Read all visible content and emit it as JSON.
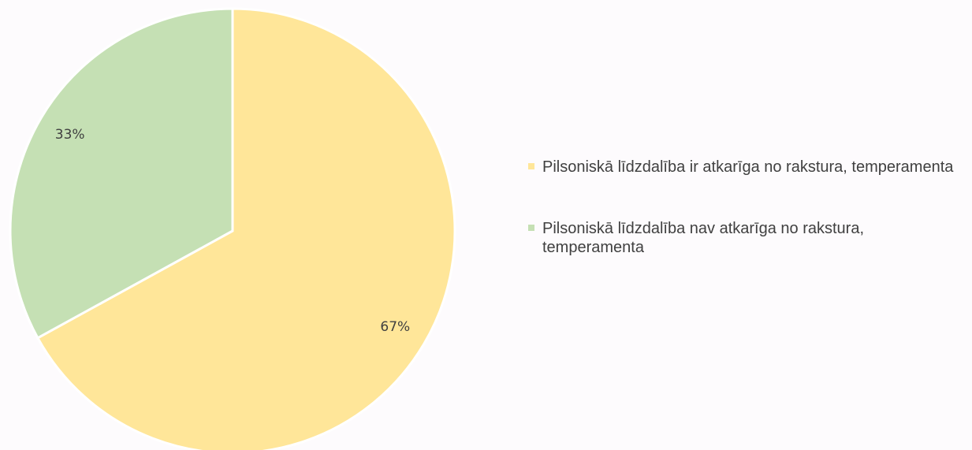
{
  "chart_data": {
    "type": "pie",
    "categories": [
      "Pilsoniskā līdzdalība ir atkarīga no rakstura, temperamenta",
      "Pilsoniskā līdzdalība nav atkarīga no rakstura, temperamenta"
    ],
    "values": [
      67,
      33
    ],
    "value_labels": [
      "67%",
      "33%"
    ],
    "colors": [
      "#ffe699",
      "#c5e0b4"
    ],
    "legend": "right"
  }
}
